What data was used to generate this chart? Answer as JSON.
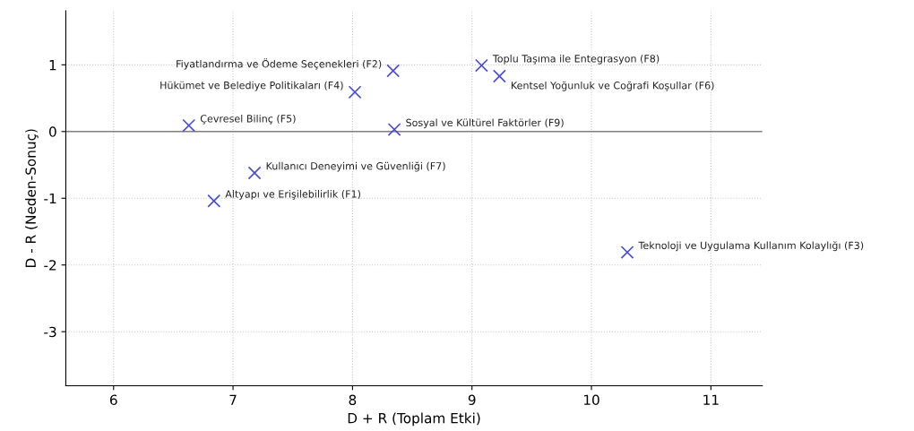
{
  "chart_data": {
    "type": "scatter",
    "xlabel": "D + R (Toplam Etki)",
    "ylabel": "D - R (Neden-Sonuç)",
    "x": [
      6.84,
      8.34,
      10.3,
      8.02,
      6.63,
      9.23,
      7.18,
      9.08,
      8.35
    ],
    "values": [
      -1.04,
      0.91,
      -1.81,
      0.59,
      0.09,
      0.83,
      -0.62,
      0.99,
      0.03
    ],
    "color": "#4b4bdc",
    "marker": "cross",
    "annotations": [
      {
        "text": "Altyapı ve Erişilebilirlik (F1)",
        "x": 6.84,
        "y": -1.04
      },
      {
        "text": "Fiyatlandırma ve Ödeme Seçenekleri (F2)",
        "x": 8.34,
        "y": 0.91
      },
      {
        "text": "Teknoloji ve Uygulama Kullanım Kolaylığı (F3)",
        "x": 10.3,
        "y": -1.81
      },
      {
        "text": "Hükümet ve Belediye Politikaları (F4)",
        "x": 8.02,
        "y": 0.59
      },
      {
        "text": "Çevresel Bilinç (F5)",
        "x": 6.63,
        "y": 0.09
      },
      {
        "text": "Kentsel Yoğunluk ve Coğrafi Koşullar (F6)",
        "x": 9.23,
        "y": 0.83
      },
      {
        "text": "Kullanıcı Deneyimi ve Güvenliği (F7)",
        "x": 7.18,
        "y": -0.62
      },
      {
        "text": "Toplu Taşıma ile Entegrasyon (F8)",
        "x": 9.08,
        "y": 0.99
      },
      {
        "text": "Sosyal ve Kültürel Faktörler (F9)",
        "x": 8.35,
        "y": 0.03
      }
    ],
    "ref_lines": [
      {
        "axis": "y",
        "value": 0,
        "color": "#808080"
      }
    ],
    "xlim": [
      5.6,
      11.43
    ],
    "ylim": [
      -3.81,
      1.81
    ],
    "xticks": [
      6,
      7,
      8,
      9,
      10,
      11
    ],
    "yticks": [
      -3,
      -2,
      -1,
      0,
      1
    ],
    "grid": true
  }
}
